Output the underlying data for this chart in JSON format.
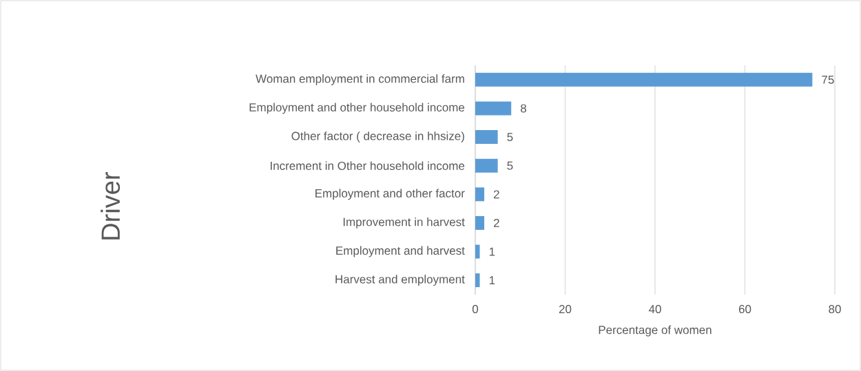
{
  "chart_data": {
    "type": "bar",
    "orientation": "horizontal",
    "xlabel": "Percentage of women",
    "ylabel": "Driver",
    "categories": [
      "Woman employment in commercial farm",
      "Employment and other household  income",
      "Other factor (  decrease in hhsize)",
      "Increment in Other household  income",
      "Employment and other factor",
      "Improvement in harvest",
      "Employment and harvest",
      "Harvest and employment"
    ],
    "values": [
      75,
      8,
      5,
      5,
      2,
      2,
      1,
      1
    ],
    "color": "#5b9bd5",
    "data_labels": true,
    "xlim": [
      0,
      80
    ],
    "xticks": [
      0,
      20,
      40,
      60,
      80
    ],
    "grid": "x"
  }
}
